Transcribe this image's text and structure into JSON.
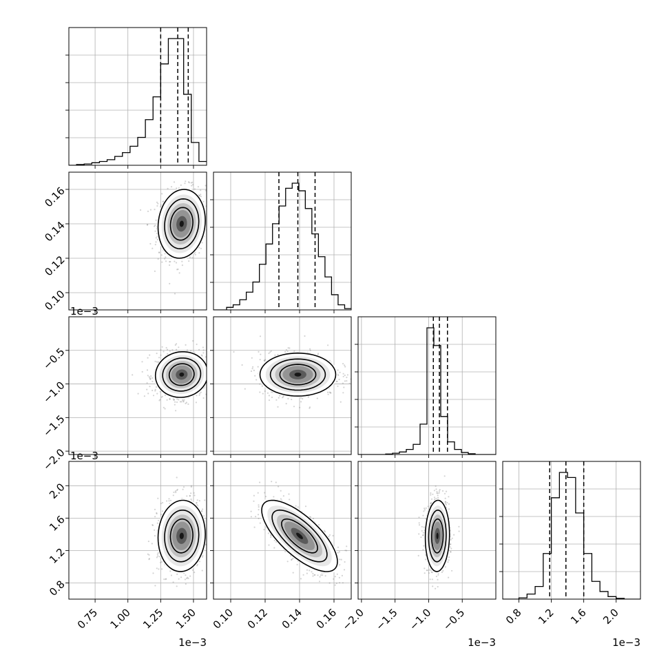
{
  "chart_data": {
    "type": "scatter",
    "style": {
      "grid": true,
      "line_color": "#000000",
      "grid_color": "#b0b0b0",
      "sample_color": "#808080"
    },
    "parameters": [
      {
        "range": [
          0.55,
          1.6
        ],
        "ticks": [
          0.75,
          1.0,
          1.25,
          1.5
        ],
        "tick_labels": [
          "0.75",
          "1.00",
          "1.25",
          "1.50"
        ],
        "offset_label": "1e−3",
        "quantiles": [
          1.25,
          1.38,
          1.46
        ]
      },
      {
        "range": [
          0.09,
          0.17
        ],
        "ticks": [
          0.1,
          0.12,
          0.14,
          0.16
        ],
        "tick_labels": [
          "0.10",
          "0.12",
          "0.14",
          "0.16"
        ],
        "offset_label": "",
        "quantiles": [
          0.128,
          0.139,
          0.149
        ]
      },
      {
        "range": [
          -2.05,
          0.0
        ],
        "ticks": [
          -2.0,
          -1.5,
          -1.0,
          -0.5
        ],
        "tick_labels": [
          "−2.0",
          "−1.5",
          "−1.0",
          "−0.5"
        ],
        "offset_label": "1e−3",
        "quantiles": [
          -0.93,
          -0.84,
          -0.72
        ]
      },
      {
        "range": [
          0.6,
          2.3
        ],
        "ticks": [
          0.8,
          1.2,
          1.6,
          2.0
        ],
        "tick_labels": [
          "0.8",
          "1.2",
          "1.6",
          "2.0"
        ],
        "offset_label": "1e−3",
        "quantiles": [
          1.18,
          1.38,
          1.6
        ]
      }
    ],
    "histograms": [
      {
        "param": 0,
        "edges": [
          0.55,
          1.6
        ],
        "counts": [
          0,
          0.3,
          0.5,
          1,
          1.5,
          2.2,
          3.5,
          5,
          7.5,
          11,
          18,
          27,
          40,
          50,
          50,
          28,
          9,
          1.5
        ]
      },
      {
        "param": 1,
        "edges": [
          0.09,
          0.17
        ],
        "counts": [
          0,
          0,
          1,
          2,
          4,
          7,
          11,
          18,
          26,
          34,
          41,
          48,
          50,
          47,
          40,
          30,
          21,
          13,
          6,
          2,
          0.5
        ]
      },
      {
        "param": 2,
        "edges": [
          -2.05,
          0.0
        ],
        "counts": [
          0,
          0,
          0,
          0,
          0.2,
          0.5,
          1,
          2,
          4,
          12,
          50,
          43,
          15,
          5,
          2,
          0.8,
          0.3,
          0,
          0,
          0
        ]
      },
      {
        "param": 3,
        "edges": [
          0.6,
          2.3
        ],
        "counts": [
          0,
          0,
          0.5,
          2,
          5,
          18,
          40,
          50,
          48,
          34,
          18,
          7,
          3,
          1,
          0.3,
          0,
          0
        ]
      }
    ],
    "pairs": [
      {
        "row": 1,
        "col": 0,
        "mean": [
          1.41,
          0.14
        ],
        "sd": [
          0.09,
          0.01
        ],
        "corr": 0.1
      },
      {
        "row": 2,
        "col": 0,
        "mean": [
          1.41,
          -0.86
        ],
        "sd": [
          0.1,
          0.17
        ],
        "corr": 0.05
      },
      {
        "row": 2,
        "col": 1,
        "mean": [
          0.139,
          -0.86
        ],
        "sd": [
          0.011,
          0.16
        ],
        "corr": 0.0
      },
      {
        "row": 3,
        "col": 0,
        "mean": [
          1.41,
          1.38
        ],
        "sd": [
          0.09,
          0.22
        ],
        "corr": 0.05
      },
      {
        "row": 3,
        "col": 1,
        "mean": [
          0.14,
          1.38
        ],
        "sd": [
          0.011,
          0.22
        ],
        "corr": -0.72
      },
      {
        "row": 3,
        "col": 2,
        "mean": [
          -0.87,
          1.38
        ],
        "sd": [
          0.09,
          0.22
        ],
        "corr": 0.05
      }
    ]
  }
}
